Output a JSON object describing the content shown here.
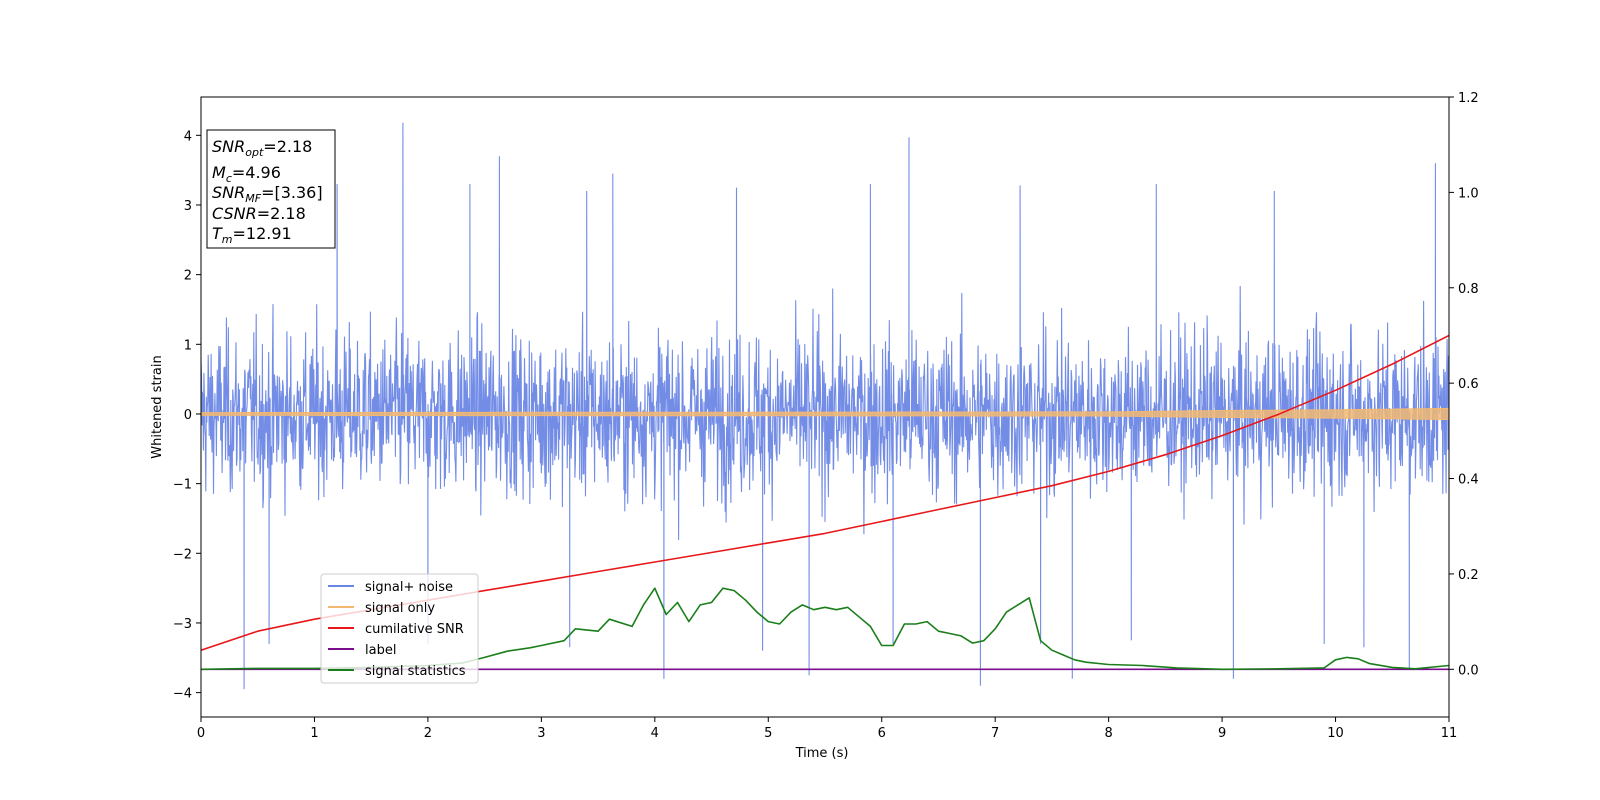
{
  "chart_data": {
    "type": "line",
    "xlabel": "Time (s)",
    "ylabel": "Whitened strain",
    "xlim": [
      0,
      11
    ],
    "ylim": [
      -4.35,
      4.55
    ],
    "y2lim": [
      -0.1,
      1.2
    ],
    "x_ticks": [
      0,
      1,
      2,
      3,
      4,
      5,
      6,
      7,
      8,
      9,
      10,
      11
    ],
    "y_ticks": [
      -4,
      -3,
      -2,
      -1,
      0,
      1,
      2,
      3,
      4
    ],
    "y2_ticks": [
      "0.0",
      "0.2",
      "0.4",
      "0.6",
      "0.8",
      "1.0",
      "1.2"
    ],
    "grid": false,
    "legend_placement": "lower-left",
    "annotation": {
      "snr_opt": {
        "name": "SNR",
        "sub": "opt",
        "value": "=2.18"
      },
      "mc": {
        "name": "M",
        "sub": "c",
        "value": "=4.96"
      },
      "snr_mf": {
        "name": "SNR",
        "sub": "MF",
        "value": "=[3.36]"
      },
      "csnr": {
        "name": "CSNR",
        "sub": "",
        "value": "=2.18"
      },
      "tm": {
        "name": "T",
        "sub": "m",
        "value": "=12.91"
      }
    },
    "series": [
      {
        "name": "signal+ noise",
        "color": "#6b87e6",
        "axis": "left",
        "note_values": "high-frequency noise, approx band -2.2..2.3 with spikes",
        "spikes": [
          [
            0.38,
            -3.95
          ],
          [
            1.78,
            4.18
          ],
          [
            2.63,
            3.7
          ],
          [
            3.63,
            3.45
          ],
          [
            4.08,
            -3.8
          ],
          [
            5.36,
            -3.75
          ],
          [
            6.24,
            3.97
          ],
          [
            6.87,
            -3.9
          ],
          [
            7.68,
            -3.8
          ],
          [
            9.1,
            -3.8
          ],
          [
            10.88,
            3.6
          ],
          [
            10.65,
            -3.65
          ],
          [
            1.2,
            3.3
          ],
          [
            2.37,
            3.3
          ],
          [
            3.4,
            3.2
          ],
          [
            4.72,
            3.25
          ],
          [
            5.9,
            3.3
          ],
          [
            7.22,
            3.28
          ],
          [
            8.42,
            3.3
          ],
          [
            9.46,
            3.2
          ],
          [
            0.6,
            -3.3
          ],
          [
            2.0,
            -3.3
          ],
          [
            3.25,
            -3.35
          ],
          [
            4.95,
            -3.4
          ],
          [
            6.1,
            -3.3
          ],
          [
            7.4,
            -3.3
          ],
          [
            8.2,
            -3.25
          ],
          [
            9.9,
            -3.3
          ],
          [
            10.25,
            -3.35
          ]
        ]
      },
      {
        "name": "signal only",
        "color": "#f2b872",
        "axis": "left",
        "envelope": [
          [
            0,
            0.02
          ],
          [
            8,
            0.03
          ],
          [
            9,
            0.05
          ],
          [
            10,
            0.06
          ],
          [
            11,
            0.08
          ]
        ]
      },
      {
        "name": "cumilative SNR",
        "color": "#e8181a",
        "axis": "right",
        "x": [
          0,
          0.5,
          1,
          1.5,
          2,
          2.5,
          3,
          3.5,
          4,
          4.5,
          5,
          5.5,
          6,
          6.5,
          7,
          7.5,
          8,
          8.5,
          9,
          9.5,
          10,
          10.5,
          11
        ],
        "y": [
          0.04,
          0.08,
          0.105,
          0.125,
          0.145,
          0.165,
          0.185,
          0.205,
          0.225,
          0.245,
          0.265,
          0.285,
          0.31,
          0.335,
          0.36,
          0.385,
          0.415,
          0.45,
          0.49,
          0.535,
          0.585,
          0.64,
          0.7
        ]
      },
      {
        "name": "label",
        "color": "#7a0d8c",
        "axis": "right",
        "x": [
          0,
          11
        ],
        "y": [
          0.0,
          0.0
        ]
      },
      {
        "name": "signal statistics",
        "color": "#1a7f1a",
        "axis": "right",
        "x": [
          0,
          0.5,
          1,
          1.5,
          2,
          2.3,
          2.5,
          2.7,
          2.9,
          3.0,
          3.2,
          3.3,
          3.5,
          3.6,
          3.8,
          3.9,
          4.0,
          4.1,
          4.2,
          4.3,
          4.4,
          4.5,
          4.6,
          4.7,
          4.8,
          4.9,
          5.0,
          5.1,
          5.2,
          5.3,
          5.4,
          5.5,
          5.6,
          5.7,
          5.8,
          5.9,
          6.0,
          6.1,
          6.2,
          6.3,
          6.4,
          6.5,
          6.6,
          6.7,
          6.8,
          6.9,
          7.0,
          7.1,
          7.2,
          7.3,
          7.4,
          7.5,
          7.6,
          7.7,
          7.8,
          8.0,
          8.3,
          8.6,
          9.0,
          9.5,
          9.9,
          10.0,
          10.1,
          10.2,
          10.3,
          10.5,
          10.7,
          11.0
        ],
        "y": [
          0.0,
          0.002,
          0.002,
          0.004,
          0.008,
          0.013,
          0.025,
          0.038,
          0.045,
          0.05,
          0.06,
          0.085,
          0.08,
          0.105,
          0.09,
          0.135,
          0.17,
          0.115,
          0.14,
          0.1,
          0.135,
          0.14,
          0.17,
          0.165,
          0.145,
          0.12,
          0.1,
          0.095,
          0.12,
          0.135,
          0.125,
          0.13,
          0.125,
          0.13,
          0.11,
          0.09,
          0.05,
          0.05,
          0.095,
          0.095,
          0.1,
          0.08,
          0.075,
          0.07,
          0.055,
          0.06,
          0.085,
          0.12,
          0.135,
          0.15,
          0.06,
          0.04,
          0.03,
          0.02,
          0.015,
          0.01,
          0.008,
          0.003,
          0.0,
          0.001,
          0.003,
          0.02,
          0.025,
          0.022,
          0.012,
          0.004,
          0.001,
          0.008
        ]
      }
    ]
  }
}
